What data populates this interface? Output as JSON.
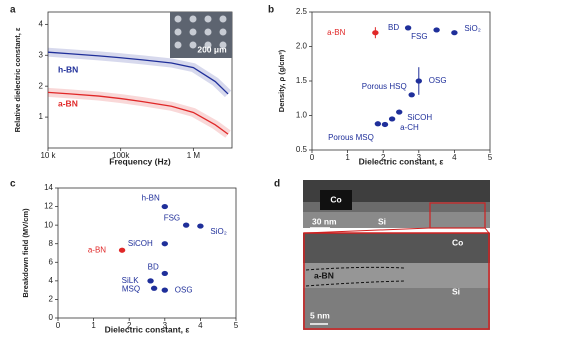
{
  "chart_data": [
    {
      "type": "line",
      "panel_label": "a",
      "xlabel": "Frequency (Hz)",
      "ylabel": "Relative dielectric constant, ε",
      "log_x": true,
      "xlim": [
        10000,
        3400000
      ],
      "xticks": [
        {
          "value": 10000,
          "label": "10 k"
        },
        {
          "value": 100000,
          "label": "100k"
        },
        {
          "value": 1000000,
          "label": "1 M"
        }
      ],
      "ylim": [
        0,
        4.4
      ],
      "yticks": [
        1,
        2,
        3,
        4
      ],
      "x": [
        10000,
        20000,
        50000,
        100000,
        200000,
        500000,
        1000000,
        2000000,
        3000000
      ],
      "series": [
        {
          "name": "h-BN",
          "color": "#1f2f9a",
          "values": [
            3.1,
            3.05,
            2.98,
            2.92,
            2.85,
            2.75,
            2.6,
            2.15,
            1.75
          ]
        },
        {
          "name": "a-BN",
          "color": "#e02828",
          "values": [
            1.8,
            1.75,
            1.68,
            1.6,
            1.5,
            1.35,
            1.15,
            0.75,
            0.45
          ]
        }
      ],
      "inset_scale": "200 μm"
    },
    {
      "type": "scatter",
      "panel_label": "b",
      "xlabel": "Dielectric constant, ε",
      "ylabel": "Density, ρ (g/cm³)",
      "xlim": [
        0,
        5
      ],
      "xticks": [
        0,
        1,
        2,
        3,
        4,
        5
      ],
      "ylim": [
        0.5,
        2.5
      ],
      "yticks": [
        {
          "value": 0.5,
          "label": "0.5"
        },
        {
          "value": 1,
          "label": "1.0"
        },
        {
          "value": 1.5,
          "label": "1.5"
        },
        {
          "value": 2,
          "label": "2.0"
        },
        {
          "value": 2.5,
          "label": "2.5"
        }
      ],
      "points": [
        {
          "label": "a-BN",
          "x": 1.78,
          "y": 2.2,
          "error": 0.08,
          "color": "#e02828"
        },
        {
          "label": "BD",
          "x": 2.7,
          "y": 2.27,
          "color": "#1f2f9a"
        },
        {
          "label": "FSG",
          "x": 3.5,
          "y": 2.24,
          "color": "#1f2f9a"
        },
        {
          "label": "SiO₂",
          "x": 4.0,
          "y": 2.2,
          "color": "#1f2f9a"
        },
        {
          "label": "OSG",
          "x": 3.0,
          "y": 1.5,
          "error": 0.2,
          "color": "#1f2f9a"
        },
        {
          "label": "Porous HSQ",
          "x": 2.8,
          "y": 1.3,
          "color": "#1f2f9a"
        },
        {
          "label": "SiCOH",
          "x": 2.45,
          "y": 1.05,
          "color": "#1f2f9a"
        },
        {
          "label": "a-CH",
          "x": 2.25,
          "y": 0.95,
          "color": "#1f2f9a"
        },
        {
          "label": null,
          "x": 2.05,
          "y": 0.87,
          "color": "#1f2f9a"
        },
        {
          "label": "Porous MSQ",
          "x": 1.85,
          "y": 0.88,
          "color": "#1f2f9a"
        }
      ]
    },
    {
      "type": "scatter",
      "panel_label": "c",
      "xlabel": "Dielectric constant, ε",
      "ylabel": "Breakdown field (MV/cm)",
      "xlim": [
        0,
        5
      ],
      "xticks": [
        0,
        1,
        2,
        3,
        4,
        5
      ],
      "ylim": [
        0,
        14
      ],
      "yticks": [
        0,
        2,
        4,
        6,
        8,
        10,
        12,
        14
      ],
      "points": [
        {
          "label": "h-BN",
          "x": 3.0,
          "y": 12,
          "color": "#1f2f9a"
        },
        {
          "label": "FSG",
          "x": 3.6,
          "y": 10,
          "color": "#1f2f9a"
        },
        {
          "label": "SiO₂",
          "x": 4.0,
          "y": 9.9,
          "color": "#1f2f9a"
        },
        {
          "label": "a-BN",
          "x": 1.8,
          "y": 7.3,
          "color": "#e02828"
        },
        {
          "label": "SiCOH",
          "x": 3.0,
          "y": 8,
          "color": "#1f2f9a"
        },
        {
          "label": "BD",
          "x": 3.0,
          "y": 4.8,
          "color": "#1f2f9a"
        },
        {
          "label": "SiLK",
          "x": 2.6,
          "y": 4,
          "color": "#1f2f9a"
        },
        {
          "label": "MSQ",
          "x": 2.7,
          "y": 3.2,
          "color": "#1f2f9a"
        },
        {
          "label": "OSG",
          "x": 3.0,
          "y": 3.0,
          "color": "#1f2f9a"
        }
      ]
    },
    {
      "type": "micrograph",
      "panel_label": "d",
      "top_labels": [
        "Co",
        "30 nm",
        "Si"
      ],
      "zoom_labels": [
        "Co",
        "a-BN",
        "Si",
        "5 nm"
      ]
    }
  ]
}
